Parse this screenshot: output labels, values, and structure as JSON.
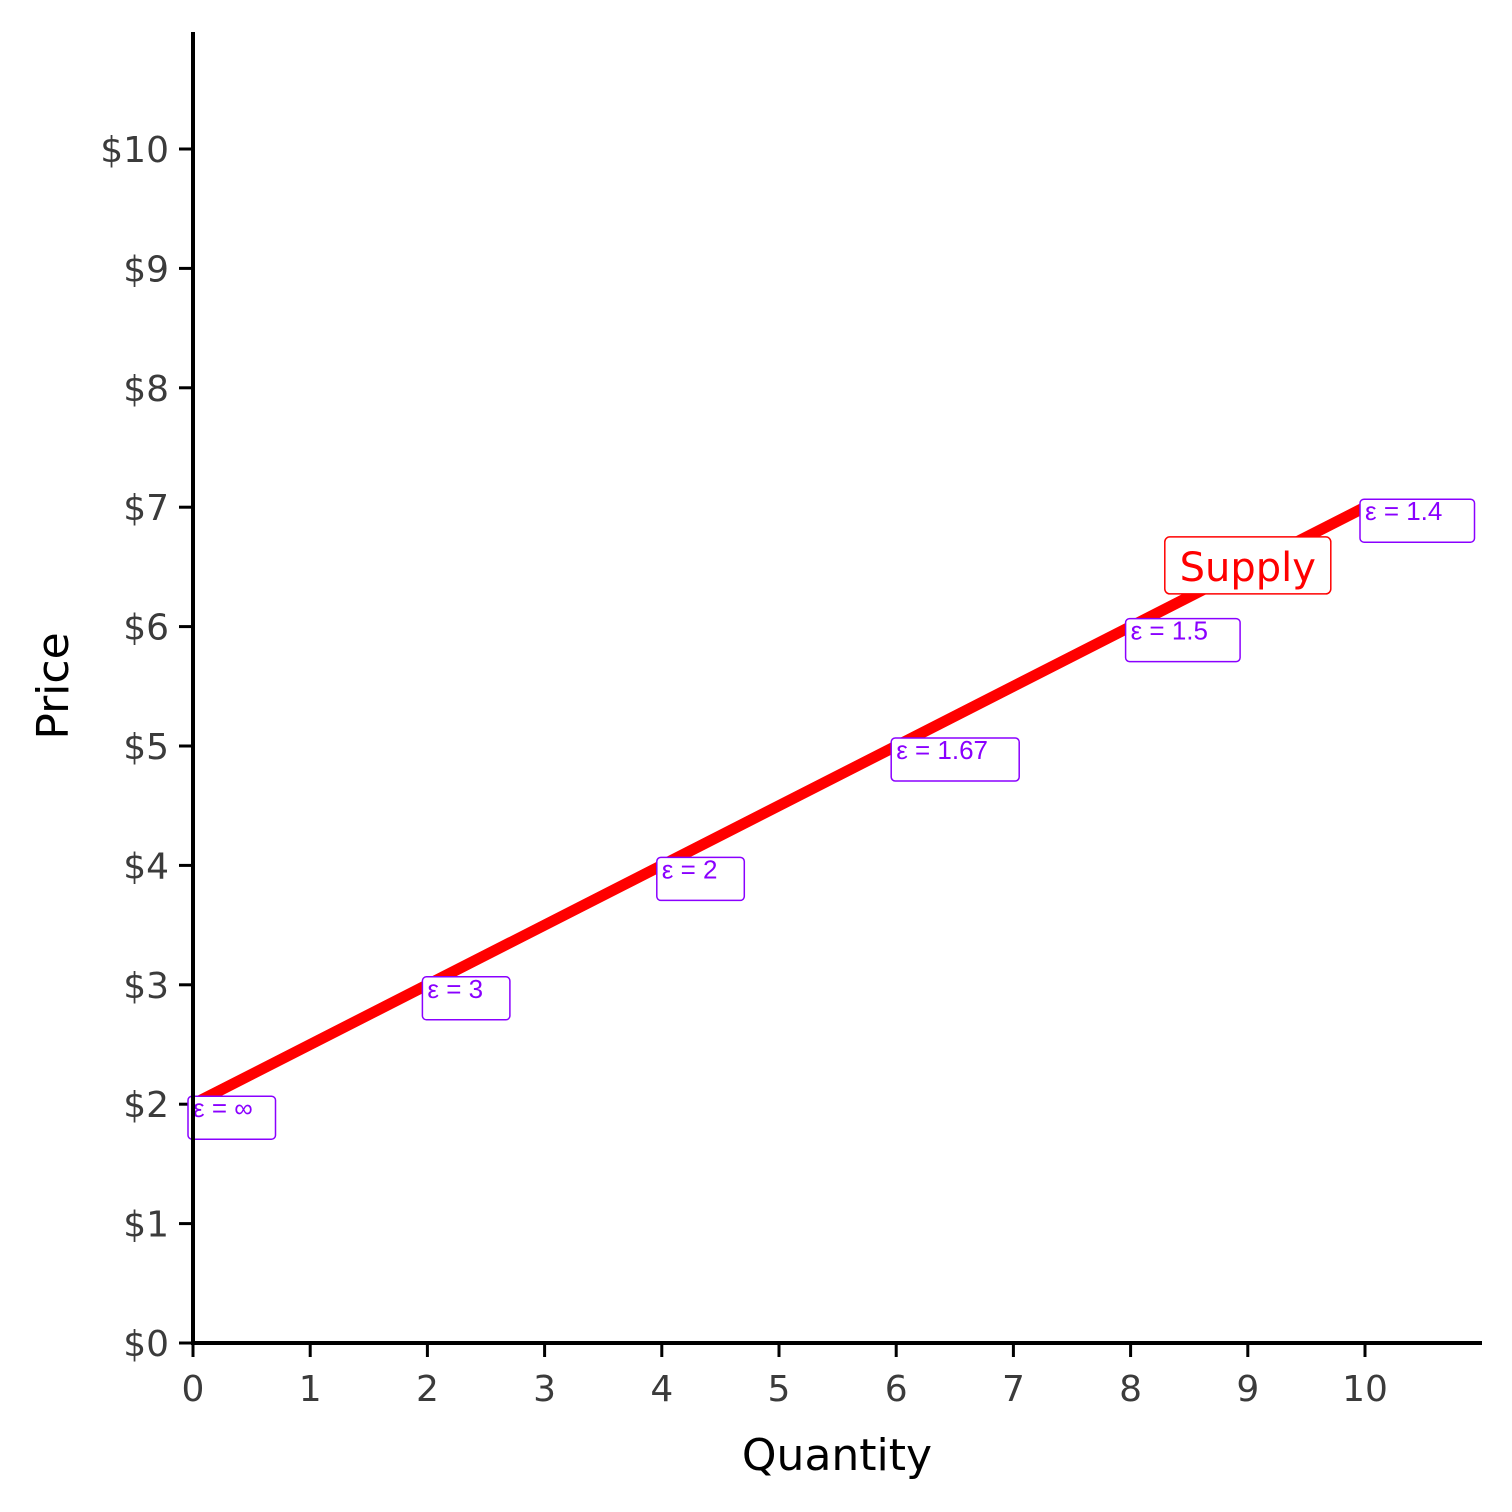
{
  "chart_data": {
    "type": "line",
    "xlabel": "Quantity",
    "ylabel": "Price",
    "xlim": [
      0,
      11
    ],
    "ylim": [
      0,
      11
    ],
    "x_ticks": [
      0,
      1,
      2,
      3,
      4,
      5,
      6,
      7,
      8,
      9,
      10
    ],
    "y_ticks": [
      0,
      1,
      2,
      3,
      4,
      5,
      6,
      7,
      8,
      9,
      10
    ],
    "x_tick_labels": [
      "0",
      "1",
      "2",
      "3",
      "4",
      "5",
      "6",
      "7",
      "8",
      "9",
      "10"
    ],
    "y_tick_labels": [
      "$0",
      "$1",
      "$2",
      "$3",
      "$4",
      "$5",
      "$6",
      "$7",
      "$8",
      "$9",
      "$10"
    ],
    "grid": false,
    "series": [
      {
        "x": [
          0,
          10
        ],
        "y": [
          2,
          7
        ],
        "color": "#ff0000"
      }
    ],
    "curve_label": {
      "text": "Supply",
      "x": 9,
      "y": 6.5,
      "color": "#ff0000"
    },
    "annotations": [
      {
        "text": "ε = ∞",
        "x": 0,
        "y": 2
      },
      {
        "text": "ε = 3",
        "x": 2,
        "y": 3
      },
      {
        "text": "ε = 2",
        "x": 4,
        "y": 4
      },
      {
        "text": "ε = 1.67",
        "x": 6,
        "y": 5
      },
      {
        "text": "ε = 1.5",
        "x": 8,
        "y": 6
      },
      {
        "text": "ε = 1.4",
        "x": 10,
        "y": 7
      }
    ],
    "annotation_color": "#8a00ff"
  }
}
